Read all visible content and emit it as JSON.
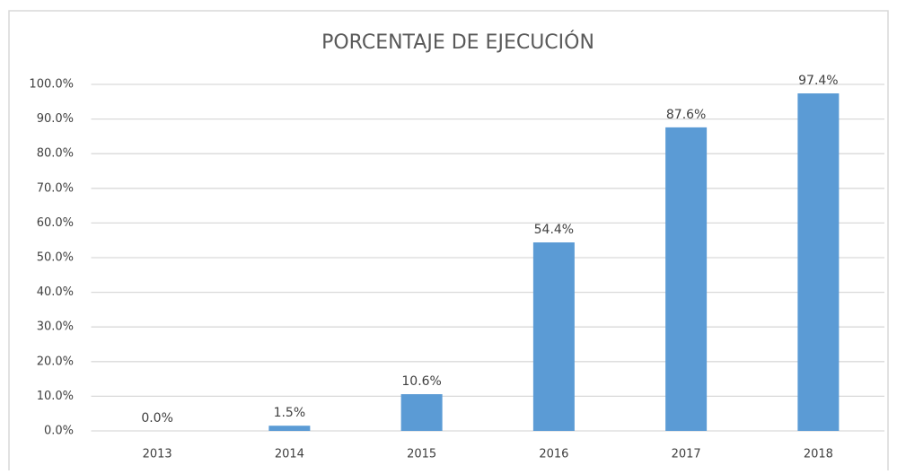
{
  "chart_data": {
    "type": "bar",
    "title": "PORCENTAJE DE EJECUCIÓN",
    "categories": [
      "2013",
      "2014",
      "2015",
      "2016",
      "2017",
      "2018"
    ],
    "values": [
      0,
      1.5,
      10.6,
      54.4,
      87.6,
      97.4
    ],
    "value_labels": [
      "0.0%",
      "1.5%",
      "10.6%",
      "54.4%",
      "87.6%",
      "97.4%"
    ],
    "color": "#5b9bd5",
    "ylim": [
      0,
      100
    ],
    "yticks": [
      {
        "value": 0,
        "label": "0.0%"
      },
      {
        "value": 10,
        "label": "10.0%"
      },
      {
        "value": 20,
        "label": "20.0%"
      },
      {
        "value": 30,
        "label": "30.0%"
      },
      {
        "value": 40,
        "label": "40.0%"
      },
      {
        "value": 50,
        "label": "50.0%"
      },
      {
        "value": 60,
        "label": "60.0%"
      },
      {
        "value": 70,
        "label": "70.0%"
      },
      {
        "value": 80,
        "label": "80.0%"
      },
      {
        "value": 90,
        "label": "90.0%"
      },
      {
        "value": 100,
        "label": "100.0%"
      }
    ],
    "grid": true
  }
}
